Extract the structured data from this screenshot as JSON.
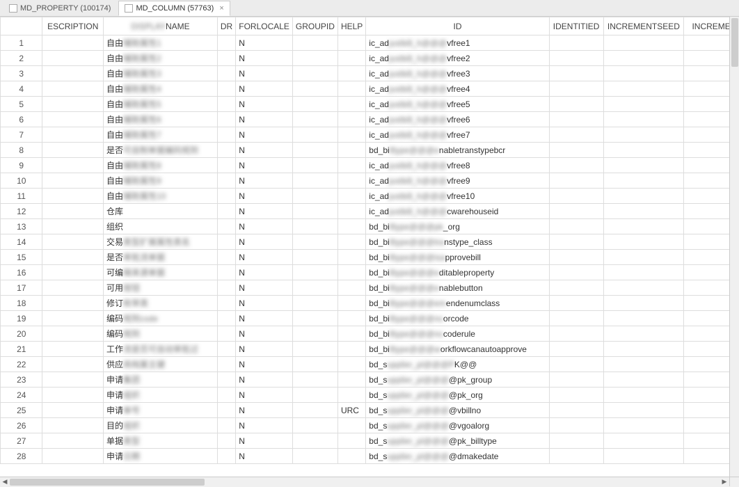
{
  "tabs": [
    {
      "label": "MD_PROPERTY (100174)",
      "active": false
    },
    {
      "label": "MD_COLUMN (57763)",
      "active": true
    }
  ],
  "columns": [
    {
      "key": "rownum",
      "label": "",
      "cls": "col-rownum"
    },
    {
      "key": "esc",
      "label": "ESCRIPTION",
      "cls": "col-esc"
    },
    {
      "key": "name",
      "label": "NAME",
      "cls": "col-name",
      "blurPrefix": "DISPLAY"
    },
    {
      "key": "dr",
      "label": "DR",
      "cls": "col-dr"
    },
    {
      "key": "forlocale",
      "label": "FORLOCALE",
      "cls": "col-forlocale"
    },
    {
      "key": "groupid",
      "label": "GROUPID",
      "cls": "col-groupid"
    },
    {
      "key": "help",
      "label": "HELP",
      "cls": "col-help"
    },
    {
      "key": "id",
      "label": "ID",
      "cls": "col-id"
    },
    {
      "key": "ident",
      "label": "IDENTITIED",
      "cls": "col-ident"
    },
    {
      "key": "incseed",
      "label": "INCREMENTSEED",
      "cls": "col-incseed"
    },
    {
      "key": "increme",
      "label": "INCREME",
      "cls": "col-increme"
    }
  ],
  "rows": [
    {
      "n": 1,
      "nameA": "自由",
      "nameB": "辅助属性1",
      "fl": "N",
      "help": "",
      "idA": "ic_ad",
      "idB": "justbill_h@@@",
      "idC": "vfree1"
    },
    {
      "n": 2,
      "nameA": "自由",
      "nameB": "辅助属性2",
      "fl": "N",
      "help": "",
      "idA": "ic_ad",
      "idB": "justbill_h@@@",
      "idC": "vfree2"
    },
    {
      "n": 3,
      "nameA": "自由",
      "nameB": "辅助属性3",
      "fl": "N",
      "help": "",
      "idA": "ic_ad",
      "idB": "justbill_h@@@",
      "idC": "vfree3"
    },
    {
      "n": 4,
      "nameA": "自由",
      "nameB": "辅助属性4",
      "fl": "N",
      "help": "",
      "idA": "ic_ad",
      "idB": "justbill_h@@@",
      "idC": "vfree4"
    },
    {
      "n": 5,
      "nameA": "自由",
      "nameB": "辅助属性5",
      "fl": "N",
      "help": "",
      "idA": "ic_ad",
      "idB": "justbill_h@@@",
      "idC": "vfree5"
    },
    {
      "n": 6,
      "nameA": "自由",
      "nameB": "辅助属性6",
      "fl": "N",
      "help": "",
      "idA": "ic_ad",
      "idB": "justbill_h@@@",
      "idC": "vfree6"
    },
    {
      "n": 7,
      "nameA": "自由",
      "nameB": "辅助属性7",
      "fl": "N",
      "help": "",
      "idA": "ic_ad",
      "idB": "justbill_h@@@",
      "idC": "vfree7"
    },
    {
      "n": 8,
      "nameA": "是否",
      "nameB": "可自制单据编码规则",
      "fl": "N",
      "help": "",
      "idA": "bd_bi",
      "idB": "lltype@@@e",
      "idC": "nabletranstypebcr"
    },
    {
      "n": 9,
      "nameA": "自由",
      "nameB": "辅助属性8",
      "fl": "N",
      "help": "",
      "idA": "ic_ad",
      "idB": "justbill_h@@@",
      "idC": "vfree8"
    },
    {
      "n": 10,
      "nameA": "自由",
      "nameB": "辅助属性9",
      "fl": "N",
      "help": "",
      "idA": "ic_ad",
      "idB": "justbill_h@@@",
      "idC": "vfree9"
    },
    {
      "n": 11,
      "nameA": "自由",
      "nameB": "辅助属性10",
      "fl": "N",
      "help": "",
      "idA": "ic_ad",
      "idB": "justbill_h@@@",
      "idC": "vfree10"
    },
    {
      "n": 12,
      "nameA": "仓库",
      "nameB": "",
      "fl": "N",
      "help": "",
      "idA": "ic_ad",
      "idB": "justbill_h@@@",
      "idC": "cwarehouseid"
    },
    {
      "n": 13,
      "nameA": "组织",
      "nameB": "",
      "fl": "N",
      "help": "",
      "idA": "bd_bi",
      "idB": "lltype@@@pk",
      "idC": "_org"
    },
    {
      "n": 14,
      "nameA": "交易",
      "nameB": "类型扩展属性类名",
      "fl": "N",
      "help": "",
      "idA": "bd_bi",
      "idB": "lltype@@@tra",
      "idC": "nstype_class"
    },
    {
      "n": 15,
      "nameA": "是否",
      "nameB": "审批流单据",
      "fl": "N",
      "help": "",
      "idA": "bd_bi",
      "idB": "lltype@@@isa",
      "idC": "pprovebill"
    },
    {
      "n": 16,
      "nameA": "可编",
      "nameB": "辑来源单据",
      "fl": "N",
      "help": "",
      "idA": "bd_bi",
      "idB": "lltype@@@e",
      "idC": "ditableproperty"
    },
    {
      "n": 17,
      "nameA": "可用",
      "nameB": "按钮",
      "fl": "N",
      "help": "",
      "idA": "bd_bi",
      "idB": "lltype@@@e",
      "idC": "nablebutton"
    },
    {
      "n": 18,
      "nameA": "修订",
      "nameB": "枚举类",
      "fl": "N",
      "help": "",
      "idA": "bd_bi",
      "idB": "lltype@@@em",
      "idC": "endenumclass"
    },
    {
      "n": 19,
      "nameA": "编码",
      "nameB": "规则code",
      "fl": "N",
      "help": "",
      "idA": "bd_bi",
      "idB": "lltype@@@nc",
      "idC": "orcode"
    },
    {
      "n": 20,
      "nameA": "编码",
      "nameB": "规则",
      "fl": "N",
      "help": "",
      "idA": "bd_bi",
      "idB": "lltype@@@nc",
      "idC": "coderule"
    },
    {
      "n": 21,
      "nameA": "工作",
      "nameB": "流是否可自动审批过",
      "fl": "N",
      "help": "",
      "idA": "bd_bi",
      "idB": "lltype@@@w",
      "idC": "orkflowcanautoapprove"
    },
    {
      "n": 22,
      "nameA": "供应",
      "nameB": "商档案主键",
      "fl": "N",
      "help": "",
      "idA": "bd_s",
      "idB": "upplier_pl@@@P",
      "idC": "K@@"
    },
    {
      "n": 23,
      "nameA": "申请",
      "nameB": "集团",
      "fl": "N",
      "help": "",
      "idA": "bd_s",
      "idB": "upplier_pl@@@",
      "idC": "@pk_group"
    },
    {
      "n": 24,
      "nameA": "申请",
      "nameB": "组织",
      "fl": "N",
      "help": "",
      "idA": "bd_s",
      "idB": "upplier_pl@@@",
      "idC": "@pk_org"
    },
    {
      "n": 25,
      "nameA": "申请",
      "nameB": "单号",
      "fl": "N",
      "help": "URC",
      "idA": "bd_s",
      "idB": "upplier_pl@@@",
      "idC": "@vbillno"
    },
    {
      "n": 26,
      "nameA": "目的",
      "nameB": "组织",
      "fl": "N",
      "help": "",
      "idA": "bd_s",
      "idB": "upplier_pl@@@",
      "idC": "@vgoalorg"
    },
    {
      "n": 27,
      "nameA": "单据",
      "nameB": "类型",
      "fl": "N",
      "help": "",
      "idA": "bd_s",
      "idB": "upplier_pl@@@",
      "idC": "@pk_billtype"
    },
    {
      "n": 28,
      "nameA": "申请",
      "nameB": "日期",
      "fl": "N",
      "help": "",
      "idA": "bd_s",
      "idB": "upplier_pl@@@",
      "idC": "@dmakedate"
    }
  ]
}
